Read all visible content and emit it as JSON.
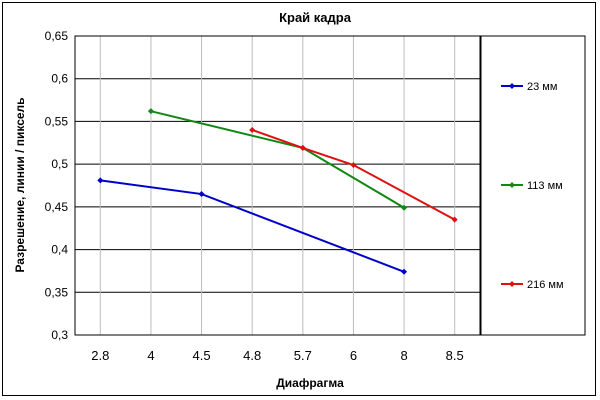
{
  "chart_data": {
    "type": "line",
    "title": "Край кадра",
    "xlabel": "Диафрагма",
    "ylabel": "Разрешение, линии / пиксель",
    "categories": [
      "2.8",
      "4",
      "4.5",
      "4.8",
      "5.7",
      "6",
      "8",
      "8.5"
    ],
    "ylim": [
      0.3,
      0.65
    ],
    "yticks": [
      "0,3",
      "0,35",
      "0,4",
      "0,45",
      "0,5",
      "0,55",
      "0,6",
      "0,65"
    ],
    "ytick_values": [
      0.3,
      0.35,
      0.4,
      0.45,
      0.5,
      0.55,
      0.6,
      0.65
    ],
    "grid": true,
    "legend_position": "right",
    "series": [
      {
        "name": "23 мм",
        "color": "#0000cc",
        "points": [
          [
            "2.8",
            0.481
          ],
          [
            "4.5",
            0.465
          ],
          [
            "8",
            0.374
          ]
        ]
      },
      {
        "name": "113 мм",
        "color": "#118811",
        "points": [
          [
            "4",
            0.562
          ],
          [
            "5.7",
            0.519
          ],
          [
            "8",
            0.449
          ]
        ]
      },
      {
        "name": "216 мм",
        "color": "#dd1111",
        "points": [
          [
            "4.8",
            0.54
          ],
          [
            "5.7",
            0.519
          ],
          [
            "6",
            0.499
          ],
          [
            "8.5",
            0.435
          ]
        ]
      }
    ]
  }
}
